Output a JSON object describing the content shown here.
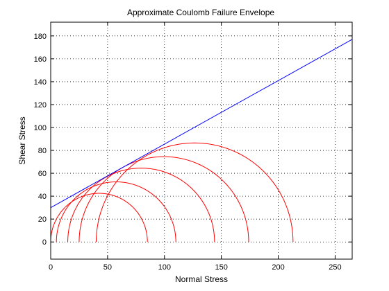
{
  "chart_data": {
    "type": "line",
    "title": "Approximate Coulomb Failure Envelope",
    "xlabel": "Normal Stress",
    "ylabel": "Shear Stress",
    "xlim": [
      0,
      265
    ],
    "ylim": [
      -15,
      192
    ],
    "x_ticks": [
      0,
      50,
      100,
      150,
      200,
      250
    ],
    "y_ticks": [
      0,
      20,
      40,
      60,
      80,
      100,
      120,
      140,
      160,
      180
    ],
    "grid": true,
    "grid_style": "dotted",
    "envelope": {
      "color": "#0000ff",
      "x": [
        0,
        265
      ],
      "y": [
        30,
        177
      ]
    },
    "mohr_circles": {
      "color": "#ff0000",
      "circles": [
        {
          "sigma3": 0,
          "sigma1": 85
        },
        {
          "sigma3": 5,
          "sigma1": 110
        },
        {
          "sigma3": 15,
          "sigma1": 144
        },
        {
          "sigma3": 25,
          "sigma1": 174
        },
        {
          "sigma3": 40,
          "sigma1": 213
        }
      ]
    },
    "colors": {
      "axes": "#000000",
      "grid": "#000000",
      "background": "#ffffff"
    }
  }
}
